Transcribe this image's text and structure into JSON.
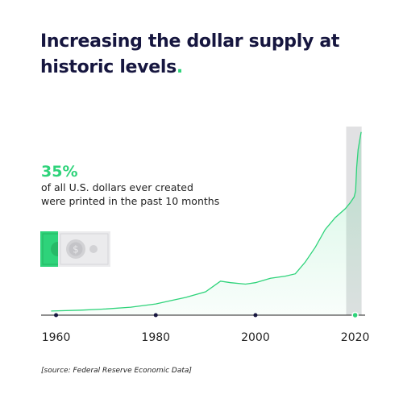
{
  "header": {
    "title": "Increasing the dollar supply at historic levels",
    "title_dot": ".",
    "accent_color": "#2ed37a",
    "title_color": "#16163f"
  },
  "stat": {
    "value": "35%",
    "caption_line1": "of all U.S. dollars ever created",
    "caption_line2": "were printed in the past 10 months",
    "icon": "dollar-bill-icon"
  },
  "source": "[source: Federal Reserve Economic Data]",
  "chart_data": {
    "type": "area",
    "title": "",
    "xlabel": "",
    "ylabel": "",
    "xlim": [
      1957,
      2022
    ],
    "ylim": [
      0,
      6300
    ],
    "x_ticks": [
      1960,
      1980,
      2000,
      2020
    ],
    "highlight_range": [
      2018.2,
      2021.3
    ],
    "grid": false,
    "color": "#2ed37a",
    "x": [
      1959,
      1965,
      1970,
      1975,
      1980,
      1983,
      1986,
      1990,
      1993,
      1995,
      1998,
      2000,
      2003,
      2006,
      2008,
      2010,
      2012,
      2014,
      2016,
      2018,
      2019,
      2019.8,
      2020.1,
      2020.3,
      2020.6,
      2021,
      2021.2
    ],
    "values": [
      140,
      170,
      210,
      270,
      380,
      490,
      600,
      790,
      1150,
      1100,
      1050,
      1100,
      1250,
      1320,
      1400,
      1800,
      2300,
      2900,
      3300,
      3600,
      3800,
      4000,
      4200,
      5000,
      5600,
      6000,
      6200
    ]
  }
}
